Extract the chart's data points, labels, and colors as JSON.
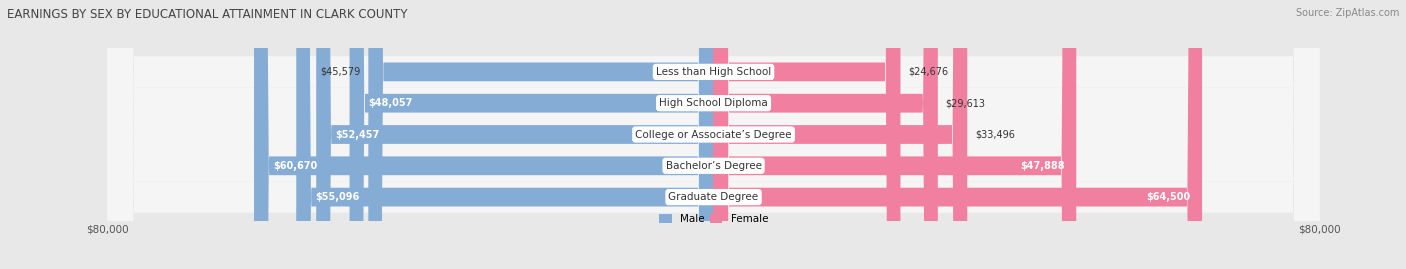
{
  "title": "EARNINGS BY SEX BY EDUCATIONAL ATTAINMENT IN CLARK COUNTY",
  "source": "Source: ZipAtlas.com",
  "categories": [
    "Less than High School",
    "High School Diploma",
    "College or Associate’s Degree",
    "Bachelor’s Degree",
    "Graduate Degree"
  ],
  "male_values": [
    45579,
    48057,
    52457,
    60670,
    55096
  ],
  "female_values": [
    24676,
    29613,
    33496,
    47888,
    64500
  ],
  "male_color": "#85acd4",
  "female_color": "#f07fa0",
  "male_label": "Male",
  "female_label": "Female",
  "x_max": 80000,
  "bg_color": "#e8e8e8",
  "row_bg_color": "#f5f5f5",
  "title_fontsize": 8.5,
  "source_fontsize": 7,
  "bar_label_fontsize": 7,
  "category_fontsize": 7.5,
  "male_inside_threshold": 48000,
  "female_inside_threshold": 40000
}
